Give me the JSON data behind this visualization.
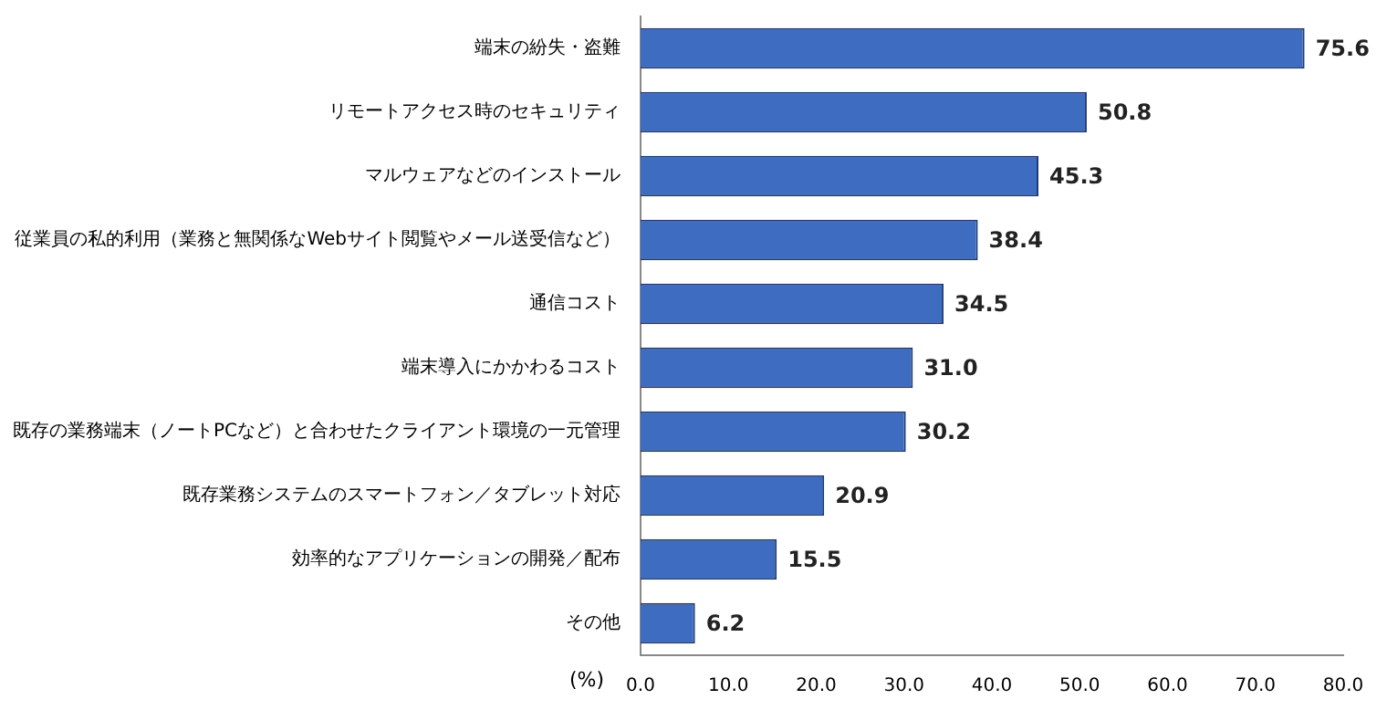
{
  "chart_data": {
    "type": "bar",
    "orientation": "horizontal",
    "xlabel": "(%)",
    "categories": [
      "端末の紛失・盗難",
      "リモートアクセス時のセキュリティ",
      "マルウェアなどのインストール",
      "従業員の私的利用（業務と無関係なWebサイト閲覧やメール送受信など）",
      "通信コスト",
      "端末導入にかかわるコスト",
      "既存の業務端末（ノートPCなど）と合わせたクライアント環境の一元管理",
      "既存業務システムのスマートフォン／タブレット対応",
      "効率的なアプリケーションの開発／配布",
      "その他"
    ],
    "values": [
      75.6,
      50.8,
      45.3,
      38.4,
      34.5,
      31.0,
      30.2,
      20.9,
      15.5,
      6.2
    ],
    "value_labels": [
      "75.6",
      "50.8",
      "45.3",
      "38.4",
      "34.5",
      "31.0",
      "30.2",
      "20.9",
      "15.5",
      "6.2"
    ],
    "color": "#3d6cc0",
    "xlim": [
      0,
      80
    ],
    "xticks": [
      {
        "value": 0,
        "label": "0.0"
      },
      {
        "value": 10,
        "label": "10.0"
      },
      {
        "value": 20,
        "label": "20.0"
      },
      {
        "value": 30,
        "label": "30.0"
      },
      {
        "value": 40,
        "label": "40.0"
      },
      {
        "value": 50,
        "label": "50.0"
      },
      {
        "value": 60,
        "label": "60.0"
      },
      {
        "value": 70,
        "label": "70.0"
      },
      {
        "value": 80,
        "label": "80.0"
      }
    ],
    "grid": false,
    "legend": false
  }
}
